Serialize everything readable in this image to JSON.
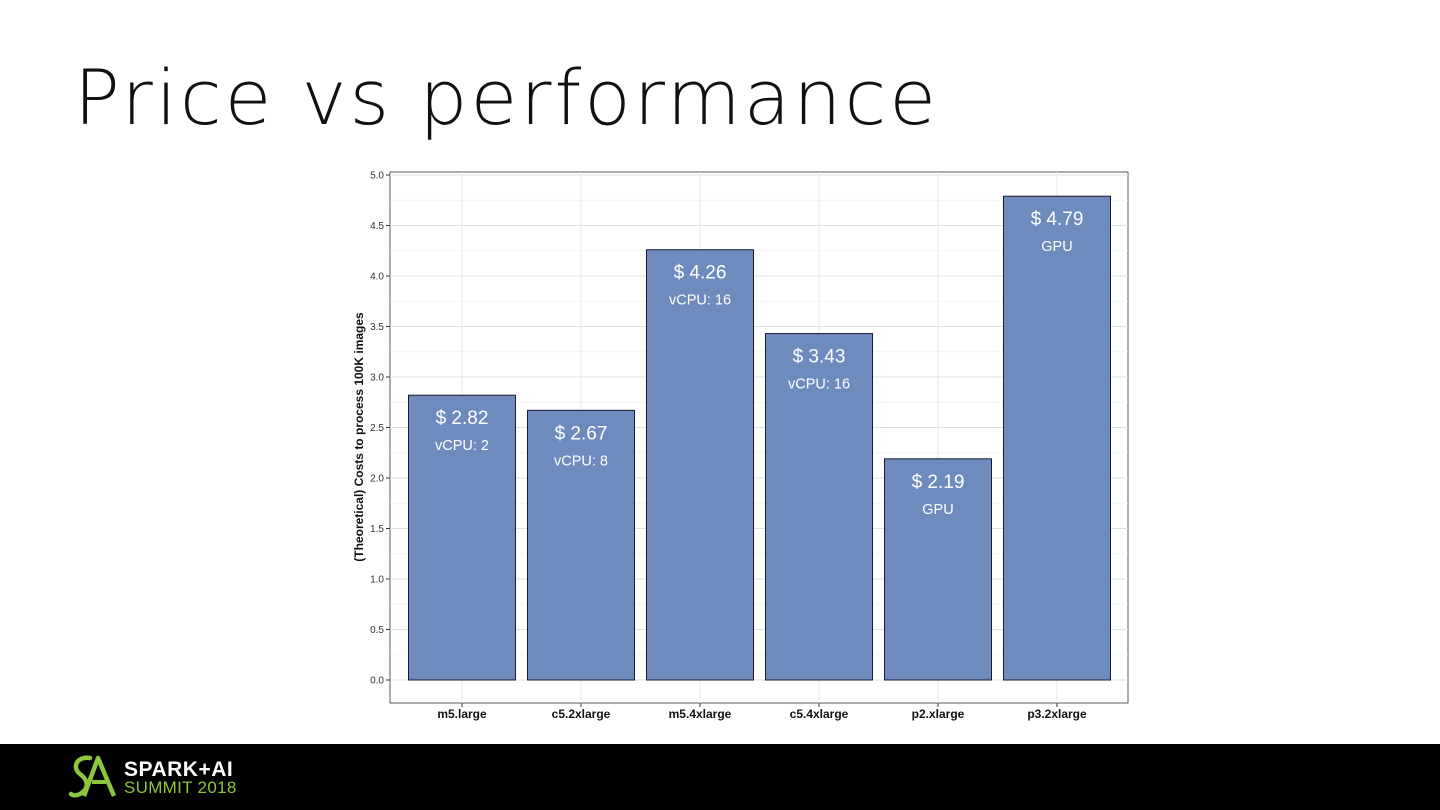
{
  "slide": {
    "title": "Price vs performance"
  },
  "footer": {
    "logo_line1": "SPARK+AI",
    "logo_line2": "SUMMIT 2018"
  },
  "colors": {
    "bar_fill": "#6f8bbd",
    "bar_stroke": "#1a1a2e",
    "accent_green": "#8dc63f"
  },
  "chart_data": {
    "type": "bar",
    "title": "",
    "xlabel": "",
    "ylabel": "(Theoretical) Costs to process 100K images",
    "ylim": [
      0,
      5
    ],
    "yticks": [
      "0.0",
      "0.5",
      "1.0",
      "1.5",
      "2.0",
      "2.5",
      "3.0",
      "3.5",
      "4.0",
      "4.5",
      "5.0"
    ],
    "grid": true,
    "categories": [
      "m5.large",
      "c5.2xlarge",
      "m5.4xlarge",
      "c5.4xlarge",
      "p2.xlarge",
      "p3.2xlarge"
    ],
    "values": [
      2.82,
      2.67,
      4.26,
      3.43,
      2.19,
      4.79
    ],
    "value_labels": [
      "$ 2.82",
      "$ 2.67",
      "$ 4.26",
      "$ 3.43",
      "$ 2.19",
      "$ 4.79"
    ],
    "sub_labels": [
      "vCPU: 2",
      "vCPU: 8",
      "vCPU: 16",
      "vCPU: 16",
      "GPU",
      "GPU"
    ]
  }
}
